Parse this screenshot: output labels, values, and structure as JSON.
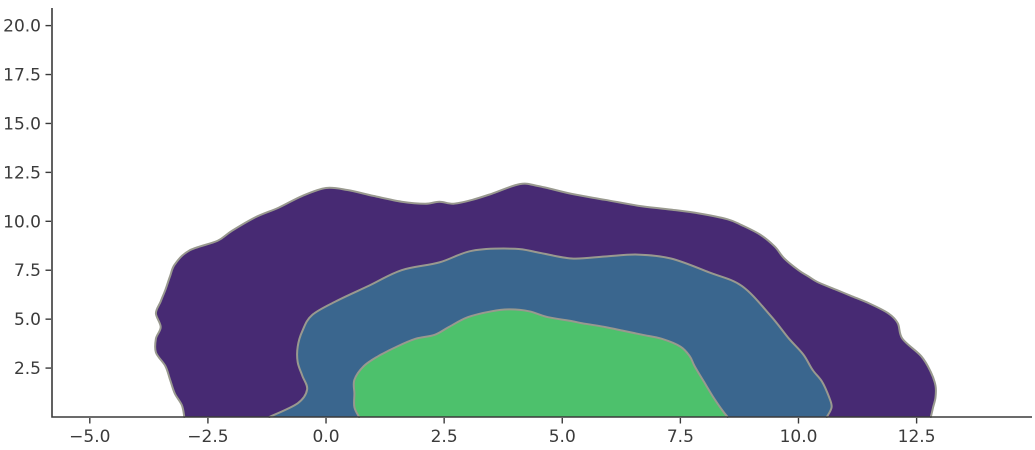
{
  "chart_data": {
    "type": "area",
    "subtype": "filled-kde-contour",
    "title": "",
    "xlabel": "",
    "ylabel": "",
    "grid": false,
    "legend": null,
    "xlim": [
      -5.8,
      14.9
    ],
    "ylim": [
      0,
      20.9
    ],
    "x_ticks": {
      "values": [
        -5.0,
        -2.5,
        0.0,
        2.5,
        5.0,
        7.5,
        10.0,
        12.5
      ],
      "labels": [
        "−5.0",
        "−2.5",
        "0.0",
        "2.5",
        "5.0",
        "7.5",
        "10.0",
        "12.5"
      ]
    },
    "y_ticks": {
      "values": [
        2.5,
        5.0,
        7.5,
        10.0,
        12.5,
        15.0,
        17.5,
        20.0
      ],
      "labels": [
        "2.5",
        "5.0",
        "7.5",
        "10.0",
        "12.5",
        "15.0",
        "17.5",
        "20.0"
      ]
    },
    "colors": {
      "axis": "#3a3a3a",
      "tick_label": "#3b3b3b",
      "contour_line": "#99998f"
    },
    "levels": [
      {
        "name": "outer-density-band",
        "fill": "#472a73",
        "points": [
          [
            -3.0,
            0.0
          ],
          [
            -3.05,
            0.6
          ],
          [
            -3.2,
            1.2
          ],
          [
            -3.3,
            1.9
          ],
          [
            -3.4,
            2.6
          ],
          [
            -3.6,
            3.3
          ],
          [
            -3.6,
            4.0
          ],
          [
            -3.5,
            4.6
          ],
          [
            -3.6,
            5.3
          ],
          [
            -3.5,
            5.9
          ],
          [
            -3.4,
            6.5
          ],
          [
            -3.3,
            7.2
          ],
          [
            -3.2,
            7.8
          ],
          [
            -2.9,
            8.5
          ],
          [
            -2.3,
            9.0
          ],
          [
            -2.0,
            9.5
          ],
          [
            -1.5,
            10.2
          ],
          [
            -1.0,
            10.7
          ],
          [
            -0.5,
            11.3
          ],
          [
            0.0,
            11.7
          ],
          [
            0.45,
            11.6
          ],
          [
            1.0,
            11.3
          ],
          [
            1.6,
            11.0
          ],
          [
            2.1,
            10.9
          ],
          [
            2.4,
            11.0
          ],
          [
            2.7,
            10.9
          ],
          [
            3.1,
            11.1
          ],
          [
            3.5,
            11.4
          ],
          [
            4.1,
            11.9
          ],
          [
            4.5,
            11.8
          ],
          [
            5.2,
            11.4
          ],
          [
            5.9,
            11.1
          ],
          [
            6.6,
            10.8
          ],
          [
            7.3,
            10.6
          ],
          [
            7.9,
            10.4
          ],
          [
            8.5,
            10.1
          ],
          [
            8.8,
            9.8
          ],
          [
            9.2,
            9.3
          ],
          [
            9.5,
            8.7
          ],
          [
            9.7,
            8.1
          ],
          [
            10.0,
            7.5
          ],
          [
            10.2,
            7.2
          ],
          [
            10.4,
            6.9
          ],
          [
            10.8,
            6.5
          ],
          [
            11.1,
            6.2
          ],
          [
            11.5,
            5.8
          ],
          [
            11.9,
            5.3
          ],
          [
            12.1,
            4.8
          ],
          [
            12.2,
            4.0
          ],
          [
            12.6,
            3.1
          ],
          [
            12.8,
            2.3
          ],
          [
            12.9,
            1.6
          ],
          [
            12.9,
            1.0
          ],
          [
            12.85,
            0.5
          ],
          [
            12.8,
            0.0
          ]
        ]
      },
      {
        "name": "middle-density-band",
        "fill": "#3a668e",
        "points": [
          [
            -1.2,
            0.0
          ],
          [
            -0.6,
            0.7
          ],
          [
            -0.4,
            1.4
          ],
          [
            -0.5,
            2.1
          ],
          [
            -0.6,
            2.8
          ],
          [
            -0.6,
            3.6
          ],
          [
            -0.5,
            4.4
          ],
          [
            -0.3,
            5.2
          ],
          [
            0.2,
            5.9
          ],
          [
            0.9,
            6.7
          ],
          [
            1.6,
            7.5
          ],
          [
            2.4,
            7.9
          ],
          [
            3.1,
            8.5
          ],
          [
            4.0,
            8.6
          ],
          [
            4.5,
            8.4
          ],
          [
            5.2,
            8.1
          ],
          [
            5.9,
            8.2
          ],
          [
            6.6,
            8.3
          ],
          [
            7.3,
            8.1
          ],
          [
            8.1,
            7.4
          ],
          [
            8.8,
            6.7
          ],
          [
            9.4,
            5.2
          ],
          [
            9.8,
            4.0
          ],
          [
            10.1,
            3.2
          ],
          [
            10.3,
            2.4
          ],
          [
            10.5,
            1.8
          ],
          [
            10.65,
            1.0
          ],
          [
            10.7,
            0.5
          ],
          [
            10.6,
            0.0
          ]
        ]
      },
      {
        "name": "inner-density-band",
        "fill": "#4dc16c",
        "points": [
          [
            0.7,
            0.0
          ],
          [
            0.6,
            0.5
          ],
          [
            0.6,
            1.2
          ],
          [
            0.6,
            1.9
          ],
          [
            0.8,
            2.6
          ],
          [
            1.1,
            3.1
          ],
          [
            1.5,
            3.6
          ],
          [
            1.9,
            4.0
          ],
          [
            2.3,
            4.2
          ],
          [
            2.6,
            4.6
          ],
          [
            3.0,
            5.1
          ],
          [
            3.5,
            5.4
          ],
          [
            3.9,
            5.5
          ],
          [
            4.3,
            5.4
          ],
          [
            4.7,
            5.1
          ],
          [
            5.2,
            4.9
          ],
          [
            5.4,
            4.8
          ],
          [
            5.9,
            4.6
          ],
          [
            6.3,
            4.4
          ],
          [
            6.7,
            4.2
          ],
          [
            7.1,
            4.0
          ],
          [
            7.5,
            3.6
          ],
          [
            7.7,
            3.1
          ],
          [
            7.8,
            2.6
          ],
          [
            8.0,
            1.8
          ],
          [
            8.2,
            1.0
          ],
          [
            8.4,
            0.3
          ],
          [
            8.5,
            0.0
          ]
        ]
      }
    ]
  }
}
